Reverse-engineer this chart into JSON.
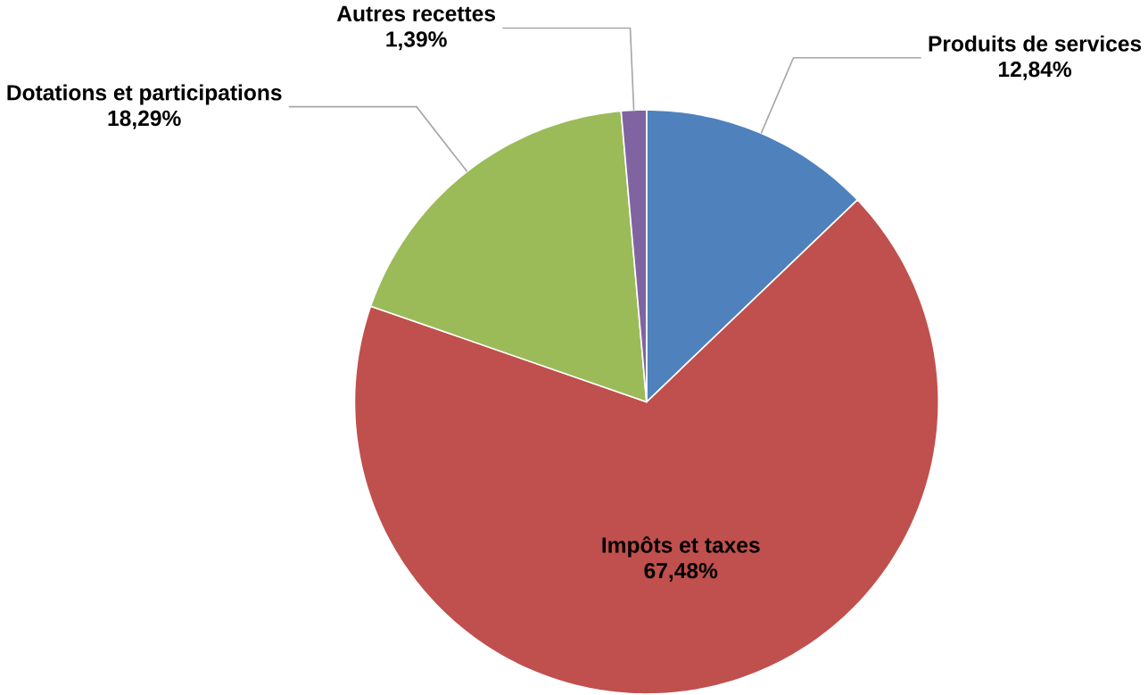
{
  "chart_data": {
    "type": "pie",
    "categories": [
      "Produits de services",
      "Impôts et taxes",
      "Dotations et participations",
      "Autres recettes"
    ],
    "values": [
      12.84,
      67.48,
      18.29,
      1.39
    ],
    "value_labels": [
      "12,84%",
      "67,48%",
      "18,29%",
      "1,39%"
    ],
    "colors": [
      "#4f81bd",
      "#c0504d",
      "#9bbb59",
      "#8064a2"
    ]
  }
}
